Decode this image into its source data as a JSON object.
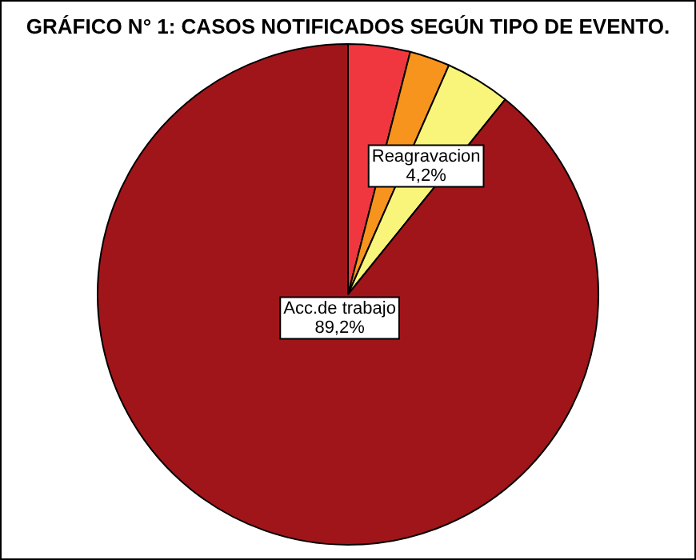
{
  "chart_data": {
    "type": "pie",
    "title": "GRÁFICO N° 1: CASOS NOTIFICADOS SEGÚN TIPO DE EVENTO.",
    "categories": [
      null,
      null,
      "Reagravacion",
      "Acc.de trabajo"
    ],
    "values": [
      4.0,
      2.6,
      4.2,
      89.2
    ],
    "colors": [
      "#f0373f",
      "#f7941d",
      "#f8f57a",
      "#a01519"
    ],
    "value_labels": [
      null,
      null,
      "4,2%",
      "89,2%"
    ],
    "legend": false
  }
}
